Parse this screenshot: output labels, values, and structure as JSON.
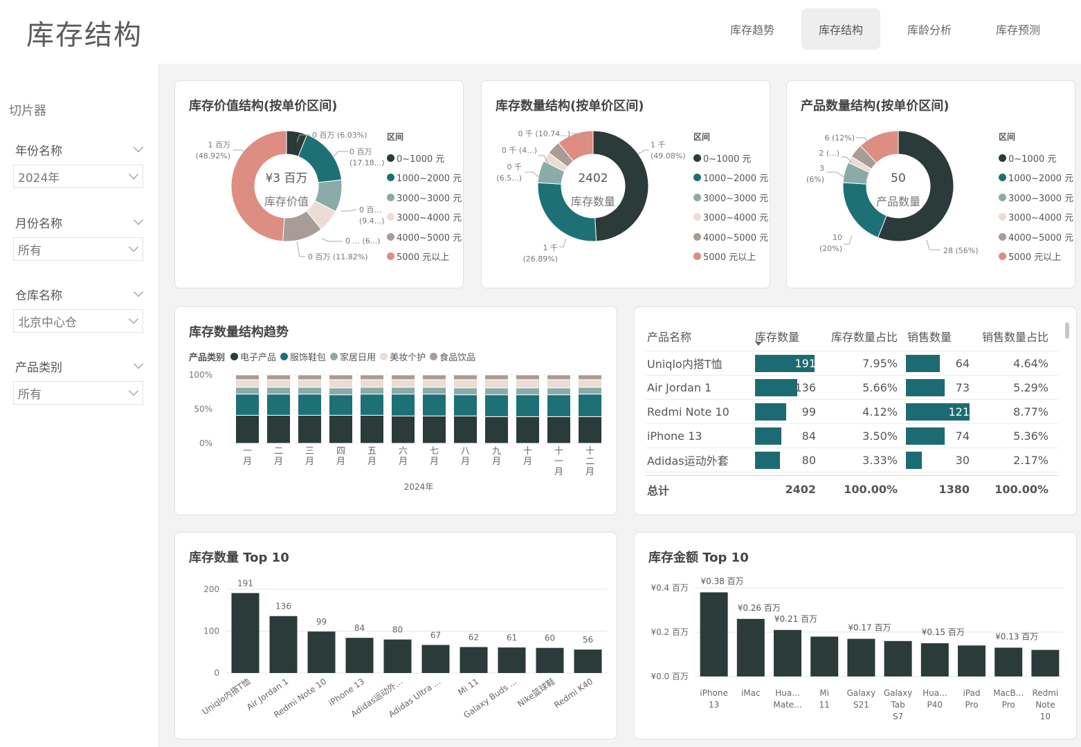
{
  "header": {
    "title": "库存结构"
  },
  "nav": {
    "tabs": [
      {
        "label": "库存趋势",
        "active": false
      },
      {
        "label": "库存结构",
        "active": true
      },
      {
        "label": "库龄分析",
        "active": false
      },
      {
        "label": "库存预测",
        "active": false
      }
    ]
  },
  "slicers": {
    "title": "切片器",
    "items": [
      {
        "label": "年份名称",
        "value": "2024年"
      },
      {
        "label": "月份名称",
        "value": "所有"
      },
      {
        "label": "仓库名称",
        "value": "北京中心仓"
      },
      {
        "label": "产品类别",
        "value": "所有"
      }
    ]
  },
  "colors": {
    "c1": "#2b3b39",
    "c2": "#1d7176",
    "c3": "#8aaba8",
    "c4": "#ecdcd4",
    "c5": "#a89c97",
    "c6": "#dd8d82",
    "bar": "#2b3b39",
    "tablebar": "#1d6b72"
  },
  "legend_price": {
    "title": "区间",
    "items": [
      "0~1000 元",
      "1000~2000 元",
      "3000~3000 元",
      "3000~4000 元",
      "4000~5000 元",
      "5000 元以上"
    ]
  },
  "donut_value": {
    "title": "库存价值结构(按单价区间)",
    "center_value": "¥3 百万",
    "center_label": "库存价值",
    "labels": [
      {
        "l1": "0 百万 (6.03%)",
        "l2": ""
      },
      {
        "l1": "0 百万",
        "l2": "(17.18...)"
      },
      {
        "l1": "0 百...",
        "l2": "(9.4...)"
      },
      {
        "l1": "0 ... (6...)",
        "l2": ""
      },
      {
        "l1": "0 百万 (11.82%)",
        "l2": ""
      },
      {
        "l1": "1 百万",
        "l2": "(48.92%)"
      }
    ]
  },
  "donut_qty": {
    "title": "库存数量结构(按单价区间)",
    "center_value": "2402",
    "center_label": "库存数量",
    "labels": [
      {
        "l1": "1 千",
        "l2": "(49.08%)"
      },
      {
        "l1": "1 千",
        "l2": "(26.89%)"
      },
      {
        "l1": "0 千",
        "l2": "(6.5...)"
      },
      {
        "l1": "0 千 (4...)",
        "l2": ""
      },
      {
        "l1": "0 千 (10.74...)",
        "l2": ""
      }
    ]
  },
  "donut_prod": {
    "title": "产品数量结构(按单价区间)",
    "center_value": "50",
    "center_label": "产品数量",
    "labels": [
      {
        "l1": "28 (56%)",
        "l2": ""
      },
      {
        "l1": "10",
        "l2": "(20%)"
      },
      {
        "l1": "3",
        "l2": "(6%)"
      },
      {
        "l1": "2 (...)",
        "l2": ""
      },
      {
        "l1": "6 (12%)",
        "l2": ""
      }
    ]
  },
  "trend": {
    "title": "库存数量结构趋势",
    "legend_head": "产品类别",
    "legend": [
      "电子产品",
      "服饰鞋包",
      "家居日用",
      "美妆个护",
      "食品饮品"
    ],
    "y_ticks": [
      "100%",
      "50%",
      "0%"
    ],
    "x_title": "2024年"
  },
  "table": {
    "headers": [
      "产品名称",
      "库存数量",
      "库存数量占比",
      "销售数量",
      "销售数量占比"
    ],
    "rows": [
      {
        "name": "Uniqlo内搭T恤",
        "qty": "191",
        "qty_pct": "7.95%",
        "sales": "64",
        "sales_pct": "4.64%"
      },
      {
        "name": "Air Jordan 1",
        "qty": "136",
        "qty_pct": "5.66%",
        "sales": "73",
        "sales_pct": "5.29%"
      },
      {
        "name": "Redmi Note 10",
        "qty": "99",
        "qty_pct": "4.12%",
        "sales": "121",
        "sales_pct": "8.77%"
      },
      {
        "name": "iPhone 13",
        "qty": "84",
        "qty_pct": "3.50%",
        "sales": "74",
        "sales_pct": "5.36%"
      },
      {
        "name": "Adidas运动外套",
        "qty": "80",
        "qty_pct": "3.33%",
        "sales": "30",
        "sales_pct": "2.17%"
      }
    ],
    "total": {
      "name": "总计",
      "qty": "2402",
      "qty_pct": "100.00%",
      "sales": "1380",
      "sales_pct": "100.00%"
    }
  },
  "top_qty": {
    "title": "库存数量 Top 10"
  },
  "top_amt": {
    "title": "库存金额 Top 10"
  },
  "chart_data": [
    {
      "type": "pie",
      "title": "库存价值结构(按单价区间)",
      "categories": [
        "0~1000 元",
        "1000~2000 元",
        "3000~3000 元",
        "3000~4000 元",
        "4000~5000 元",
        "5000 元以上"
      ],
      "values": [
        6.03,
        17.18,
        9.4,
        6.65,
        11.82,
        48.92
      ]
    },
    {
      "type": "pie",
      "title": "库存数量结构(按单价区间)",
      "categories": [
        "0~1000 元",
        "1000~2000 元",
        "3000~3000 元",
        "3000~4000 元",
        "4000~5000 元",
        "5000 元以上"
      ],
      "values": [
        49.08,
        26.89,
        6.5,
        2.8,
        4.0,
        10.74
      ]
    },
    {
      "type": "pie",
      "title": "产品数量结构(按单价区间)",
      "categories": [
        "0~1000 元",
        "1000~2000 元",
        "3000~3000 元",
        "3000~4000 元",
        "4000~5000 元",
        "5000 元以上"
      ],
      "values": [
        28,
        10,
        3,
        1,
        2,
        6
      ]
    },
    {
      "type": "bar",
      "stacked": true,
      "title": "库存数量结构趋势",
      "categories": [
        "一月",
        "二月",
        "三月",
        "四月",
        "五月",
        "六月",
        "七月",
        "八月",
        "九月",
        "十月",
        "十一月",
        "十二月"
      ],
      "ylim": [
        0,
        100
      ],
      "series": [
        {
          "name": "电子产品",
          "values": [
            41,
            41,
            41,
            41,
            41,
            40,
            40,
            40,
            39,
            39,
            39,
            39
          ]
        },
        {
          "name": "服饰鞋包",
          "values": [
            31,
            31,
            31,
            30,
            31,
            32,
            32,
            31,
            32,
            32,
            32,
            33
          ]
        },
        {
          "name": "家居日用",
          "values": [
            10,
            10,
            10,
            10,
            10,
            10,
            10,
            10,
            10,
            10,
            10,
            10
          ]
        },
        {
          "name": "美妆个护",
          "values": [
            11,
            11,
            11,
            12,
            11,
            11,
            11,
            12,
            12,
            12,
            12,
            11
          ]
        },
        {
          "name": "食品饮品",
          "values": [
            7,
            7,
            7,
            7,
            7,
            7,
            7,
            7,
            7,
            7,
            7,
            7
          ]
        }
      ]
    },
    {
      "type": "bar",
      "title": "库存数量 Top 10",
      "categories": [
        "Uniqlo内搭T恤",
        "Air Jordan 1",
        "Redmi Note 10",
        "iPhone 13",
        "Adidas运动外...",
        "Adidas Ultra ...",
        "Mi 11",
        "Galaxy Buds ...",
        "Nike篮球鞋",
        "Redmi K40"
      ],
      "values": [
        191,
        136,
        99,
        84,
        80,
        67,
        62,
        61,
        60,
        56
      ],
      "y_ticks": [
        "200",
        "100",
        "0"
      ],
      "ylim": [
        0,
        220
      ]
    },
    {
      "type": "bar",
      "title": "库存金额 Top 10",
      "categories": [
        "iPhone 13",
        "iMac",
        "Hua... Mate...",
        "Mi 11",
        "Galaxy S21",
        "Galaxy Tab S7",
        "Hua... P40",
        "iPad Pro",
        "MacB... Pro",
        "Redmi Note 10"
      ],
      "values": [
        0.38,
        0.26,
        0.21,
        0.18,
        0.17,
        0.16,
        0.15,
        0.14,
        0.13,
        0.12
      ],
      "data_labels": [
        "¥0.38 百万",
        "¥0.26 百万",
        "¥0.21 百万",
        "",
        "¥0.17 百万",
        "",
        "¥0.15 百万",
        "",
        "¥0.13 百万",
        ""
      ],
      "y_ticks": [
        "¥0.4 百万",
        "¥0.2 百万",
        "¥0.0 百万"
      ],
      "ylim": [
        0,
        0.4
      ]
    }
  ]
}
